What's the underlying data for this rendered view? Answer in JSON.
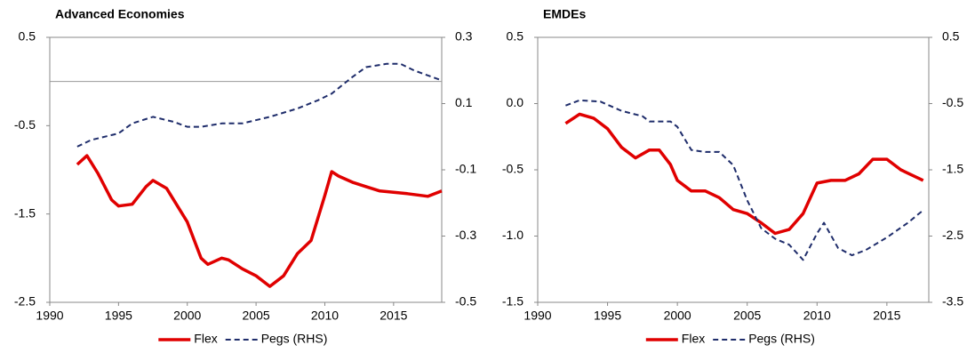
{
  "chart_data": [
    {
      "type": "line",
      "title": "Advanced Economies",
      "zero_line": true,
      "xlim": [
        1990,
        2018.5
      ],
      "xticks": [
        1990,
        1995,
        2000,
        2005,
        2010,
        2015
      ],
      "ylim": [
        -2.5,
        0.5
      ],
      "yticks": [
        0.5,
        -0.5,
        -1.5,
        -2.5
      ],
      "y2lim": [
        -0.5,
        0.3
      ],
      "y2ticks": [
        0.3,
        0.1,
        -0.1,
        -0.3,
        -0.5
      ],
      "series": [
        {
          "name": "Flex",
          "color": "#e00000",
          "line_style": "solid",
          "x": [
            1992,
            1992.7,
            1993.5,
            1994.5,
            1995,
            1996,
            1997,
            1997.5,
            1998.5,
            2000,
            2001,
            2001.5,
            2002.5,
            2003,
            2004,
            2005,
            2006,
            2007,
            2008,
            2009,
            2010,
            2010.5,
            2011,
            2012,
            2013,
            2014,
            2016,
            2017.5,
            2018.5
          ],
          "values": [
            -0.94,
            -0.84,
            -1.04,
            -1.34,
            -1.41,
            -1.39,
            -1.19,
            -1.12,
            -1.21,
            -1.59,
            -2.0,
            -2.07,
            -2.0,
            -2.02,
            -2.12,
            -2.2,
            -2.32,
            -2.2,
            -1.95,
            -1.8,
            -1.29,
            -1.02,
            -1.07,
            -1.14,
            -1.19,
            -1.24,
            -1.27,
            -1.3,
            -1.24
          ]
        },
        {
          "name": "Pegs (RHS)",
          "color": "#1f2d6b",
          "line_style": "dashed",
          "axis": "y2",
          "x": [
            1992,
            1993,
            1995,
            1996,
            1997.5,
            1999,
            2000,
            2001,
            2002.5,
            2004,
            2006,
            2008,
            2009.5,
            2010.5,
            2012,
            2013,
            2014.5,
            2015.5,
            2016.5,
            2018.5
          ],
          "values": [
            -0.03,
            -0.01,
            0.01,
            0.04,
            0.06,
            0.045,
            0.03,
            0.03,
            0.04,
            0.04,
            0.06,
            0.085,
            0.11,
            0.13,
            0.18,
            0.21,
            0.22,
            0.22,
            0.2,
            0.17
          ]
        }
      ]
    },
    {
      "type": "line",
      "title": "EMDEs",
      "xlim": [
        1990,
        2018
      ],
      "xticks": [
        1990,
        1995,
        2000,
        2005,
        2010,
        2015
      ],
      "ylim": [
        -1.5,
        0.5
      ],
      "yticks": [
        0.5,
        {
          "value": 0,
          "label": "0.0"
        },
        -0.5,
        {
          "value": -1,
          "label": "-1.0"
        },
        -1.5
      ],
      "y2lim": [
        -3.5,
        0.5
      ],
      "y2ticks": [
        0.5,
        -0.5,
        -1.5,
        -2.5,
        -3.5
      ],
      "series": [
        {
          "name": "Flex",
          "color": "#e00000",
          "line_style": "solid",
          "x": [
            1992,
            1993,
            1994,
            1995,
            1996,
            1997,
            1998,
            1998.7,
            1999.5,
            2000,
            2001,
            2002,
            2003,
            2004,
            2005,
            2006,
            2007,
            2008,
            2009,
            2010,
            2011,
            2012,
            2013,
            2014,
            2015,
            2016,
            2017.6
          ],
          "values": [
            -0.15,
            -0.08,
            -0.11,
            -0.19,
            -0.33,
            -0.41,
            -0.35,
            -0.35,
            -0.46,
            -0.58,
            -0.66,
            -0.66,
            -0.71,
            -0.8,
            -0.83,
            -0.9,
            -0.98,
            -0.95,
            -0.83,
            -0.6,
            -0.58,
            -0.58,
            -0.53,
            -0.42,
            -0.42,
            -0.5,
            -0.58
          ]
        },
        {
          "name": "Pegs (RHS)",
          "color": "#1f2d6b",
          "line_style": "dashed",
          "axis": "y2",
          "x": [
            1992,
            1993,
            1994.5,
            1996,
            1997.5,
            1998,
            1999.5,
            2000,
            2001,
            2002,
            2003,
            2004,
            2005,
            2006,
            2007,
            2008,
            2009,
            2010,
            2010.5,
            2011.5,
            2012.5,
            2013.5,
            2015,
            2016.5,
            2017.6
          ],
          "values": [
            -0.53,
            -0.45,
            -0.47,
            -0.61,
            -0.69,
            -0.77,
            -0.77,
            -0.85,
            -1.2,
            -1.23,
            -1.23,
            -1.43,
            -1.96,
            -2.38,
            -2.54,
            -2.63,
            -2.86,
            -2.46,
            -2.3,
            -2.68,
            -2.79,
            -2.71,
            -2.52,
            -2.3,
            -2.11
          ]
        }
      ]
    }
  ]
}
